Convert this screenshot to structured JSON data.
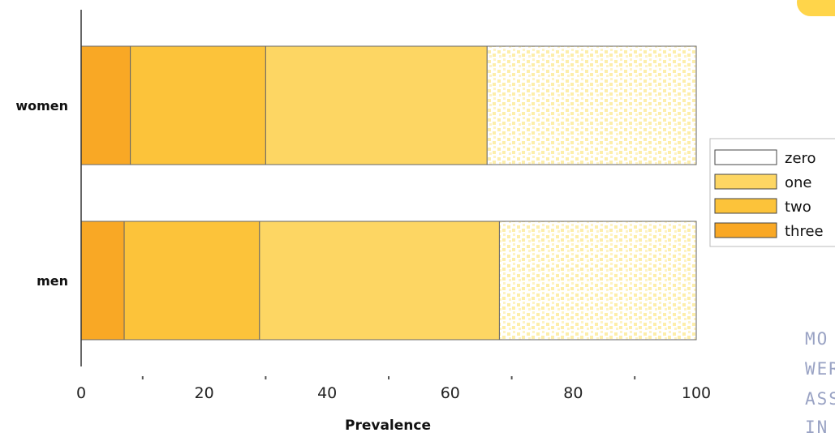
{
  "chart_data": {
    "type": "bar",
    "orientation": "horizontal",
    "stacked": true,
    "categories": [
      "women",
      "men"
    ],
    "series": [
      {
        "name": "three",
        "values": [
          8,
          7
        ],
        "color": "#f9a825"
      },
      {
        "name": "two",
        "values": [
          22,
          22
        ],
        "color": "#fcc33a"
      },
      {
        "name": "one",
        "values": [
          36,
          39
        ],
        "color": "#fdd663"
      },
      {
        "name": "zero",
        "values": [
          34,
          32
        ],
        "color": "#ffffff",
        "texture_color": "#fdeeaa"
      }
    ],
    "xlabel": "Prevalence",
    "ylabel": "",
    "xlim": [
      0,
      100
    ],
    "xticks": [
      0,
      20,
      40,
      60,
      80,
      100
    ],
    "legend_position": "right",
    "grid": false
  },
  "side_text": [
    "MO",
    "WERE",
    "ASSES",
    "IN PE"
  ]
}
